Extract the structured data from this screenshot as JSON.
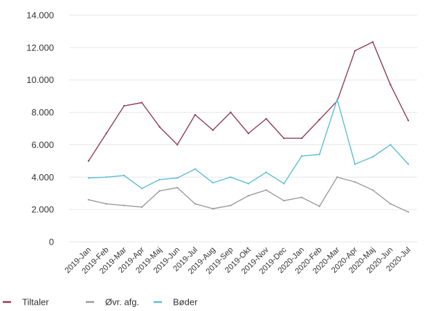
{
  "chart_data": {
    "type": "line",
    "title": "",
    "xlabel": "",
    "ylabel": "",
    "ylim": [
      0,
      14000
    ],
    "yticks": [
      0,
      2000,
      4000,
      6000,
      8000,
      10000,
      12000,
      14000
    ],
    "ytick_labels": [
      "0",
      "2.000",
      "4.000",
      "6.000",
      "8.000",
      "10.000",
      "12.000",
      "14.000"
    ],
    "grid": true,
    "legend_position": "bottom-left",
    "categories": [
      "2019-Jan",
      "2019-Feb",
      "2019-Mar",
      "2019-Apr",
      "2019-Maj",
      "2019-Jun",
      "2019-Jul",
      "2019-Aug",
      "2019-Sep",
      "2019-Okt",
      "2019-Nov",
      "2019-Dec",
      "2020-Jan",
      "2020-Feb",
      "2020-Mar",
      "2020-Apr",
      "2020-Maj",
      "2020-Jun",
      "2020-Jul"
    ],
    "series": [
      {
        "name": "Tiltaler",
        "color": "#8c3a55",
        "values": [
          5000,
          6700,
          8400,
          8600,
          7100,
          6000,
          7850,
          6900,
          8000,
          6700,
          7600,
          6400,
          6400,
          7550,
          8700,
          11800,
          12350,
          9700,
          7500
        ]
      },
      {
        "name": "Øvr. afg.",
        "color": "#999999",
        "values": [
          2600,
          2350,
          2250,
          2150,
          3150,
          3350,
          2350,
          2050,
          2250,
          2850,
          3200,
          2550,
          2750,
          2200,
          4000,
          3700,
          3200,
          2350,
          1850
        ]
      },
      {
        "name": "Bøder",
        "color": "#5bbcd6",
        "values": [
          3950,
          4000,
          4100,
          3300,
          3850,
          3950,
          4500,
          3650,
          4000,
          3600,
          4300,
          3600,
          5300,
          5400,
          8800,
          4800,
          5250,
          6000,
          4800
        ]
      }
    ]
  }
}
